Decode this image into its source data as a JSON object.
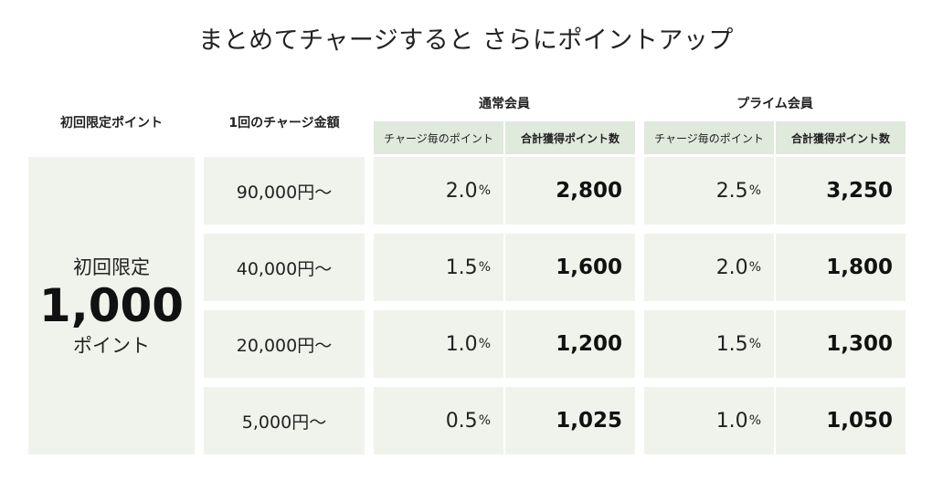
{
  "title": "まとめてチャージすると さらにポイントアップ",
  "headers": {
    "promo_col": "初回限定ポイント",
    "amount_col": "1回のチャージ金額",
    "regular_group": "通常会員",
    "prime_group": "プライム会員",
    "per_charge": "チャージ毎のポイント",
    "total": "合計獲得ポイント数"
  },
  "promo": {
    "line1": "初回限定",
    "points": "1,000",
    "line3": "ポイント"
  },
  "percent_unit": "%",
  "rows": [
    {
      "amount": "90,000円～",
      "regular_rate": "2.0",
      "regular_total": "2,800",
      "prime_rate": "2.5",
      "prime_total": "3,250"
    },
    {
      "amount": "40,000円～",
      "regular_rate": "1.5",
      "regular_total": "1,600",
      "prime_rate": "2.0",
      "prime_total": "1,800"
    },
    {
      "amount": "20,000円～",
      "regular_rate": "1.0",
      "regular_total": "1,200",
      "prime_rate": "1.5",
      "prime_total": "1,300"
    },
    {
      "amount": "5,000円～",
      "regular_rate": "0.5",
      "regular_total": "1,025",
      "prime_rate": "1.0",
      "prime_total": "1,050"
    }
  ],
  "colors": {
    "cell_background": "#eff3ec",
    "header_background": "#dfe9dc"
  }
}
